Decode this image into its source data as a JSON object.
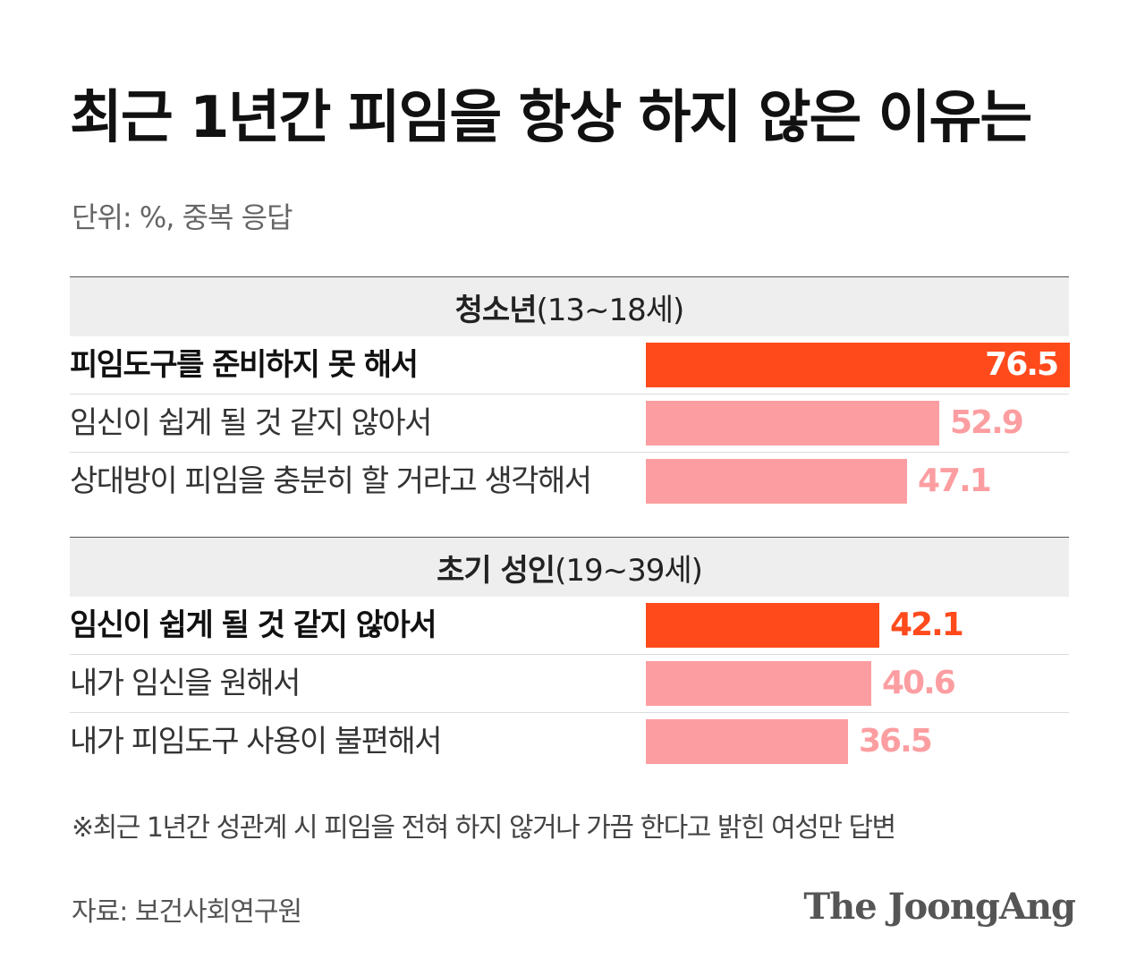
{
  "title": "최근 1년간 피임을 항상 하지 않은 이유는",
  "unit_note": "단위: %, 중복 응답",
  "footnote": "※최근 1년간 성관계 시 피임을 전혀 하지 않거나 가끔 한다고 밝힌 여성만 답변",
  "source": "자료: 보건사회연구원",
  "logo": "The JoongAng",
  "colors": {
    "highlight": "#ff4a1c",
    "normal": "#fc9ea1"
  },
  "chart_data": [
    {
      "type": "bar",
      "orientation": "horizontal",
      "group_name": "청소년",
      "group_range": "(13~18세)",
      "xlim": [
        0,
        76.5
      ],
      "categories": [
        "피임도구를 준비하지 못 해서",
        "임신이 쉽게 될 것 같지 않아서",
        "상대방이 피임을 충분히 할 거라고 생각해서"
      ],
      "values": [
        76.5,
        52.9,
        47.1
      ],
      "labels": [
        "76.5",
        "52.9",
        "47.1"
      ],
      "highlight": [
        true,
        false,
        false
      ]
    },
    {
      "type": "bar",
      "orientation": "horizontal",
      "group_name": "초기 성인",
      "group_range": "(19~39세)",
      "xlim": [
        0,
        76.5
      ],
      "categories": [
        "임신이 쉽게 될 것 같지 않아서",
        "내가 임신을 원해서",
        "내가 피임도구 사용이 불편해서"
      ],
      "values": [
        42.1,
        40.6,
        36.5
      ],
      "labels": [
        "42.1",
        "40.6",
        "36.5"
      ],
      "highlight": [
        true,
        false,
        false
      ]
    }
  ]
}
